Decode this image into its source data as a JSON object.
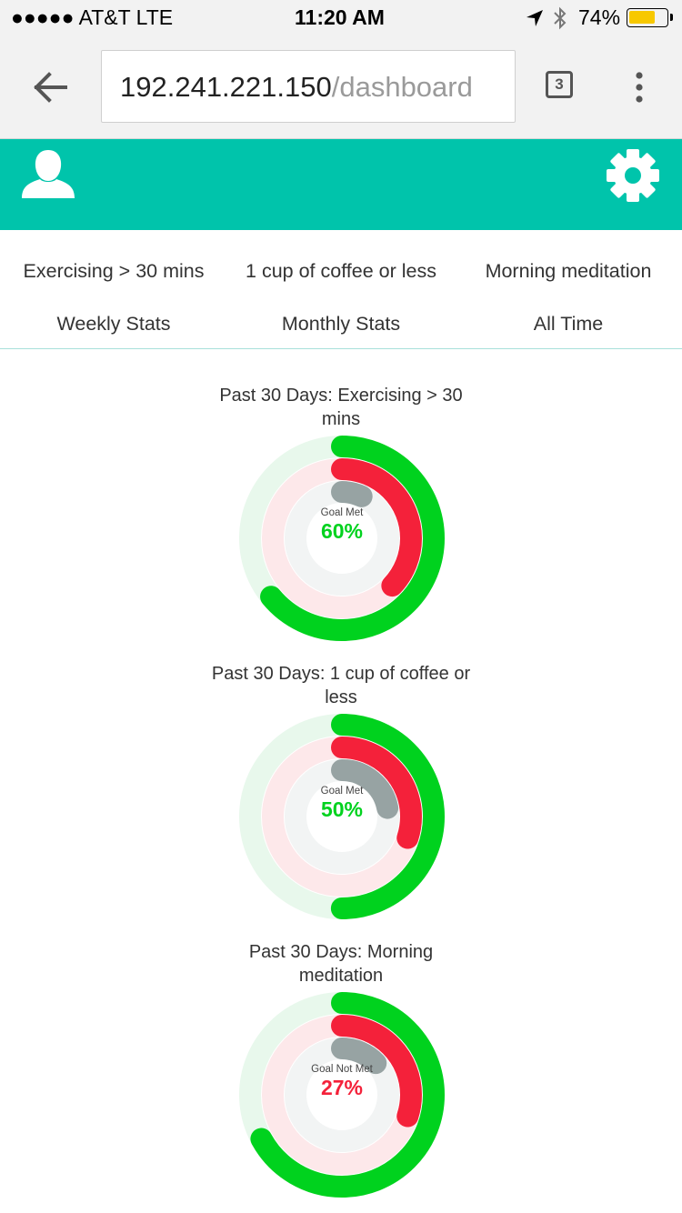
{
  "status_bar": {
    "carrier": "●●●●● AT&T   LTE",
    "time": "11:20 AM",
    "battery": "74%",
    "battery_level": 0.74,
    "battery_color": "#f7c800"
  },
  "browser": {
    "url_host": "192.241.221.150",
    "url_path": "/dashboard",
    "tab_count": "3"
  },
  "header": {
    "color": "#00c4ab",
    "profile_icon": "user-silhouette-icon",
    "settings_icon": "gear-icon"
  },
  "habits": [
    "Exercising > 30 mins",
    "1 cup of coffee or less",
    "Morning meditation"
  ],
  "stat_tabs": [
    "Weekly Stats",
    "Monthly Stats",
    "All Time"
  ],
  "colors": {
    "green": "#00d21e",
    "red": "#f4213a",
    "gray": "#97a3a3"
  },
  "charts": [
    {
      "title": "Past 30 Days: Exercising > 30 mins",
      "status": "Goal Met",
      "percent": "60%",
      "percent_color": "#00d21e",
      "outer": 0.64,
      "middle": 0.37,
      "inner": 0.07
    },
    {
      "title": "Past 30 Days: 1 cup of coffee or less",
      "status": "Goal Met",
      "percent": "50%",
      "percent_color": "#00d21e",
      "outer": 0.5,
      "middle": 0.3,
      "inner": 0.22
    },
    {
      "title": "Past 30 Days: Morning meditation",
      "status": "Goal Not Met",
      "percent": "27%",
      "percent_color": "#f4213a",
      "outer": 0.67,
      "middle": 0.3,
      "inner": 0.13
    }
  ]
}
